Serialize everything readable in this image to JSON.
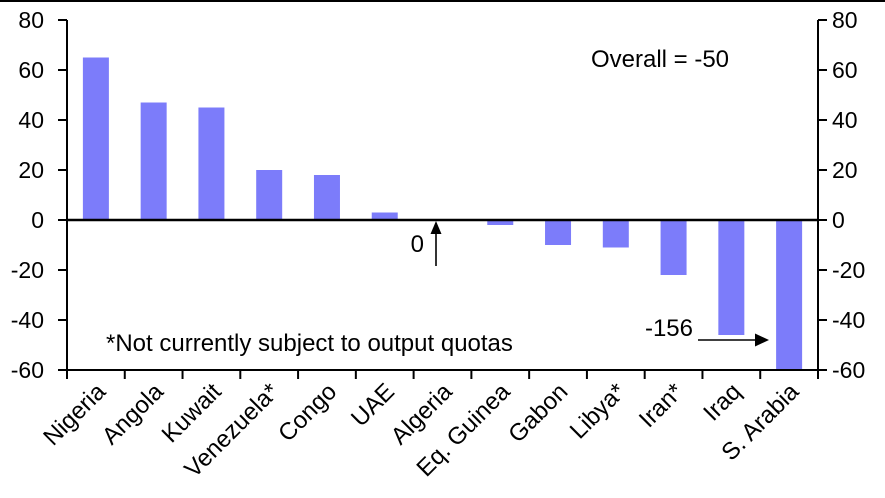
{
  "chart_data": {
    "type": "bar",
    "categories": [
      "Nigeria",
      "Angola",
      "Kuwait",
      "Venezuela*",
      "Congo",
      "UAE",
      "Algeria",
      "Eq. Guinea",
      "Gabon",
      "Libya*",
      "Iran*",
      "Iraq",
      "S. Arabia"
    ],
    "values": [
      65,
      47,
      45,
      20,
      18,
      3,
      0,
      -2,
      -10,
      -11,
      -22,
      -46,
      -156
    ],
    "ylim": [
      -60,
      80
    ],
    "yticks": [
      80,
      60,
      40,
      20,
      0,
      -20,
      -40,
      -60
    ],
    "grid": false,
    "legend": "none",
    "bar_color": "#7C7CFA",
    "axis_color": "#000000",
    "clip_note": "S. Arabia bar clipped at axis minimum -60; labeled -156",
    "annotations": {
      "overall": "Overall = -50",
      "algeria_zero": "0",
      "footnote": "*Not currently subject to output quotas",
      "saudi_value": "-156"
    }
  }
}
